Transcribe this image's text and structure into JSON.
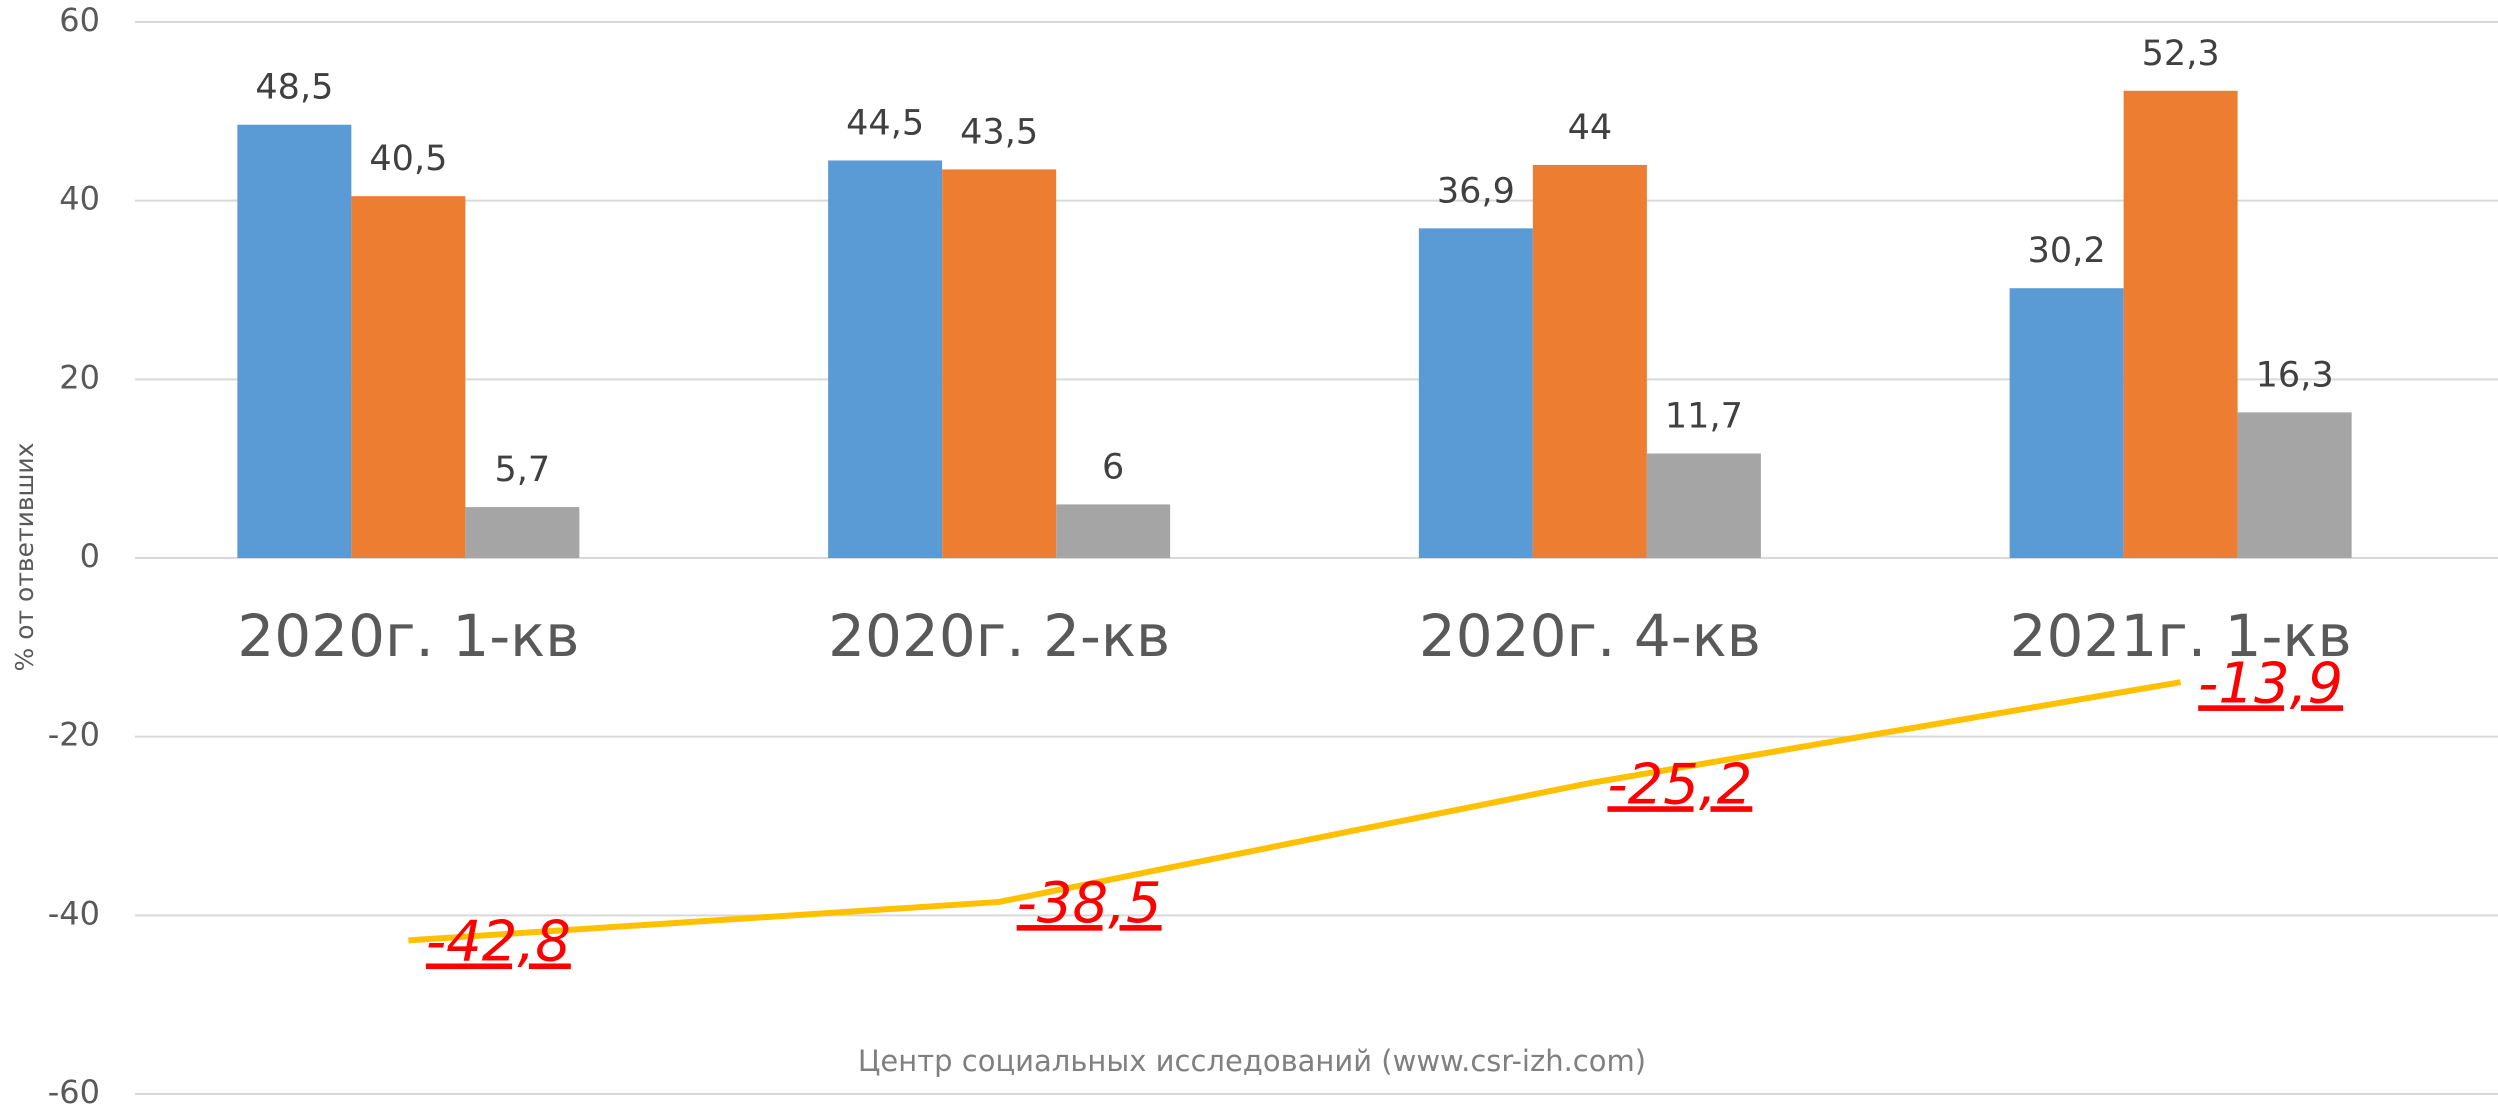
{
  "chart_data": {
    "type": "bar",
    "y_label": "% от ответивших",
    "note": "Центр социальных исследований (www.csr-izh.com)",
    "categories": [
      "2020г. 1-кв",
      "2020г. 2-кв",
      "2020г. 4-кв",
      "2021г. 1-кв"
    ],
    "series": [
      {
        "color": "#5b9bd5",
        "values": [
          48.5,
          44.5,
          36.9,
          30.2
        ],
        "value_labels": [
          "48,5",
          "44,5",
          "36,9",
          "30,2"
        ]
      },
      {
        "color": "#ed7d31",
        "values": [
          40.5,
          43.5,
          44,
          52.3
        ],
        "value_labels": [
          "40,5",
          "43,5",
          "44",
          "52,3"
        ]
      },
      {
        "color": "#a5a5a5",
        "values": [
          5.7,
          6,
          11.7,
          16.3
        ],
        "value_labels": [
          "5,7",
          "6",
          "11,7",
          "16,3"
        ]
      },
      {
        "type": "line",
        "color": "#ffc000",
        "values": [
          -42.8,
          -38.5,
          -25.2,
          -13.9
        ],
        "value_labels": [
          "-42,8",
          "-38,5",
          "-25,2",
          "-13,9"
        ]
      }
    ],
    "ylim": [
      -60,
      60
    ],
    "yticks": [
      -60,
      -40,
      -20,
      0,
      20,
      40,
      60
    ],
    "grid": true
  }
}
